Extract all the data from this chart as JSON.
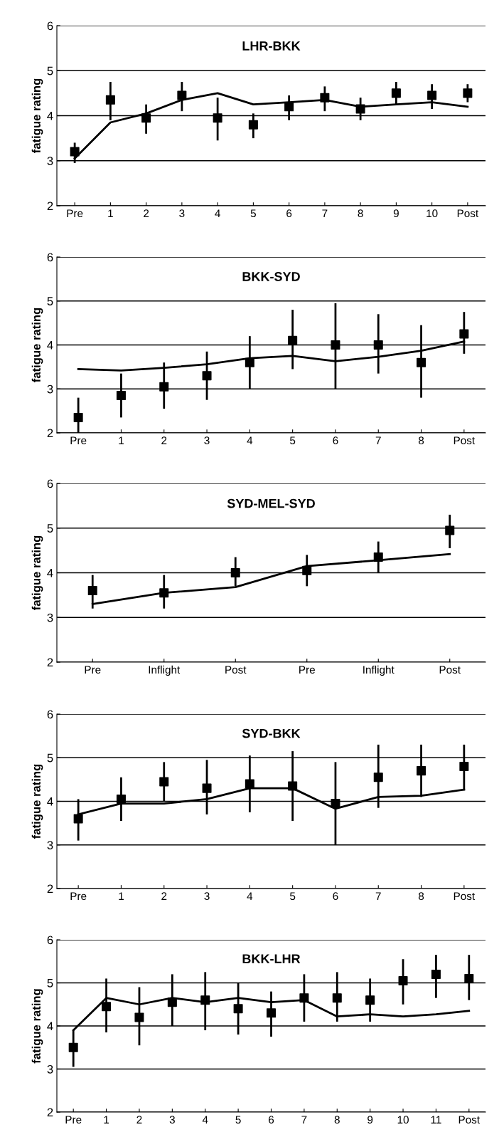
{
  "chart_data": [
    {
      "type": "line",
      "title": "LHR-BKK",
      "ylabel": "fatigue rating",
      "categories": [
        "Pre",
        "1",
        "2",
        "3",
        "4",
        "5",
        "6",
        "7",
        "8",
        "9",
        "10",
        "Post"
      ],
      "ylim": [
        2,
        6
      ],
      "yticks": [
        2,
        3,
        4,
        5,
        6
      ],
      "grid": "y",
      "series": [
        {
          "type": "line",
          "color": "#000000",
          "marker": "none",
          "values": [
            3.05,
            3.85,
            4.05,
            4.35,
            4.5,
            4.25,
            4.3,
            4.35,
            4.2,
            4.25,
            4.3,
            4.2
          ]
        },
        {
          "type": "scatter",
          "color": "#000000",
          "marker": "square",
          "values": [
            3.2,
            4.35,
            3.95,
            4.45,
            3.95,
            3.8,
            4.2,
            4.4,
            4.15,
            4.5,
            4.45,
            4.5
          ],
          "errors": [
            [
              2.95,
              3.4
            ],
            [
              3.9,
              4.75
            ],
            [
              3.6,
              4.25
            ],
            [
              4.1,
              4.75
            ],
            [
              3.45,
              4.4
            ],
            [
              3.5,
              4.05
            ],
            [
              3.9,
              4.45
            ],
            [
              4.1,
              4.65
            ],
            [
              3.9,
              4.4
            ],
            [
              4.25,
              4.75
            ],
            [
              4.15,
              4.7
            ],
            [
              4.3,
              4.7
            ]
          ]
        }
      ]
    },
    {
      "type": "line",
      "title": "BKK-SYD",
      "ylabel": "fatigue rating",
      "categories": [
        "Pre",
        "1",
        "2",
        "3",
        "4",
        "5",
        "6",
        "7",
        "8",
        "Post"
      ],
      "ylim": [
        2,
        6
      ],
      "yticks": [
        2,
        3,
        4,
        5,
        6
      ],
      "grid": "y",
      "series": [
        {
          "type": "line",
          "color": "#000000",
          "marker": "none",
          "values": [
            3.45,
            3.42,
            3.48,
            3.56,
            3.7,
            3.75,
            3.63,
            3.73,
            3.87,
            4.08
          ]
        },
        {
          "type": "scatter",
          "color": "#000000",
          "marker": "square",
          "values": [
            2.35,
            2.85,
            3.05,
            3.3,
            3.6,
            4.1,
            4.0,
            4.0,
            3.6,
            4.25
          ],
          "errors": [
            [
              2.0,
              2.8
            ],
            [
              2.35,
              3.35
            ],
            [
              2.55,
              3.6
            ],
            [
              2.75,
              3.85
            ],
            [
              3.0,
              4.2
            ],
            [
              3.45,
              4.8
            ],
            [
              3.0,
              4.95
            ],
            [
              3.35,
              4.7
            ],
            [
              2.8,
              4.45
            ],
            [
              3.8,
              4.75
            ]
          ]
        }
      ]
    },
    {
      "type": "line",
      "title": "SYD-MEL-SYD",
      "ylabel": "fatigue rating",
      "categories": [
        "Pre",
        "Inflight",
        "Post",
        "Pre",
        "Inflight",
        "Post"
      ],
      "ylim": [
        2,
        6
      ],
      "yticks": [
        2,
        3,
        4,
        5,
        6
      ],
      "grid": "y",
      "series": [
        {
          "type": "line",
          "color": "#000000",
          "marker": "none",
          "values": [
            3.3,
            3.55,
            3.68,
            4.15,
            4.28,
            4.42
          ]
        },
        {
          "type": "scatter",
          "color": "#000000",
          "marker": "square",
          "values": [
            3.6,
            3.55,
            4.0,
            4.05,
            4.35,
            4.95
          ],
          "errors": [
            [
              3.2,
              3.95
            ],
            [
              3.2,
              3.95
            ],
            [
              3.7,
              4.35
            ],
            [
              3.7,
              4.4
            ],
            [
              4.0,
              4.7
            ],
            [
              4.55,
              5.3
            ]
          ]
        }
      ]
    },
    {
      "type": "line",
      "title": "SYD-BKK",
      "ylabel": "fatigue rating",
      "categories": [
        "Pre",
        "1",
        "2",
        "3",
        "4",
        "5",
        "6",
        "7",
        "8",
        "Post"
      ],
      "ylim": [
        2,
        6
      ],
      "yticks": [
        2,
        3,
        4,
        5,
        6
      ],
      "grid": "y",
      "series": [
        {
          "type": "line",
          "color": "#000000",
          "marker": "none",
          "values": [
            3.7,
            3.95,
            3.95,
            4.05,
            4.3,
            4.3,
            3.83,
            4.1,
            4.13,
            4.27
          ]
        },
        {
          "type": "scatter",
          "color": "#000000",
          "marker": "square",
          "values": [
            3.6,
            4.05,
            4.45,
            4.3,
            4.4,
            4.35,
            3.95,
            4.55,
            4.7,
            4.8
          ],
          "errors": [
            [
              3.1,
              4.05
            ],
            [
              3.55,
              4.55
            ],
            [
              4.0,
              4.9
            ],
            [
              3.7,
              4.95
            ],
            [
              3.75,
              5.05
            ],
            [
              3.55,
              5.15
            ],
            [
              3.0,
              4.9
            ],
            [
              3.85,
              5.3
            ],
            [
              4.1,
              5.3
            ],
            [
              4.25,
              5.3
            ]
          ]
        }
      ]
    },
    {
      "type": "line",
      "title": "BKK-LHR",
      "ylabel": "fatigue rating",
      "categories": [
        "Pre",
        "1",
        "2",
        "3",
        "4",
        "5",
        "6",
        "7",
        "8",
        "9",
        "10",
        "11",
        "Post"
      ],
      "ylim": [
        2,
        6
      ],
      "yticks": [
        2,
        3,
        4,
        5,
        6
      ],
      "grid": "y",
      "series": [
        {
          "type": "line",
          "color": "#000000",
          "marker": "none",
          "values": [
            3.9,
            4.65,
            4.5,
            4.65,
            4.55,
            4.65,
            4.55,
            4.6,
            4.22,
            4.27,
            4.22,
            4.27,
            4.35
          ]
        },
        {
          "type": "scatter",
          "color": "#000000",
          "marker": "square",
          "values": [
            3.5,
            4.45,
            4.2,
            4.55,
            4.6,
            4.4,
            4.3,
            4.65,
            4.65,
            4.6,
            5.05,
            5.2,
            5.1
          ],
          "errors": [
            [
              3.05,
              3.9
            ],
            [
              3.85,
              5.1
            ],
            [
              3.55,
              4.9
            ],
            [
              4.0,
              5.2
            ],
            [
              3.9,
              5.25
            ],
            [
              3.8,
              5.0
            ],
            [
              3.75,
              4.8
            ],
            [
              4.1,
              5.2
            ],
            [
              4.1,
              5.25
            ],
            [
              4.1,
              5.1
            ],
            [
              4.5,
              5.55
            ],
            [
              4.65,
              5.65
            ],
            [
              4.6,
              5.65
            ]
          ]
        }
      ]
    }
  ]
}
